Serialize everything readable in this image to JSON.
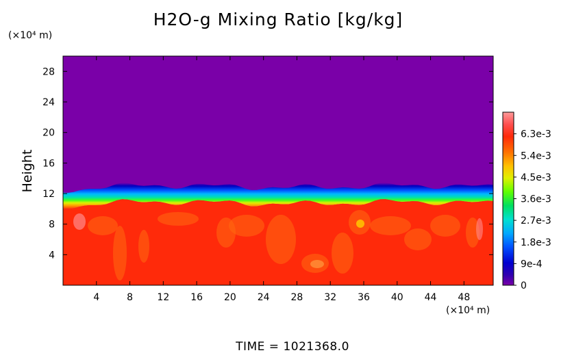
{
  "chart_data": {
    "type": "heatmap",
    "title": "H2O-g Mixing Ratio [kg/kg]",
    "ylabel": "Height",
    "x_unit": "(×10⁴ m)",
    "y_unit": "(×10⁴ m)",
    "xlim": [
      0,
      51.5
    ],
    "ylim": [
      0,
      30
    ],
    "x_ticks": [
      "4",
      "8",
      "12",
      "16",
      "20",
      "24",
      "28",
      "32",
      "36",
      "40",
      "44",
      "48"
    ],
    "y_ticks": [
      "4",
      "8",
      "12",
      "16",
      "20",
      "24",
      "28"
    ],
    "colorbar": {
      "min": 0,
      "max": 0.0072,
      "labels": [
        "0",
        "9e-4",
        "1.8e-3",
        "2.7e-3",
        "3.6e-3",
        "4.5e-3",
        "5.4e-3",
        "6.3e-3"
      ],
      "label_values": [
        0,
        0.0009,
        0.0018,
        0.0027,
        0.0036,
        0.0045,
        0.0054,
        0.0063
      ]
    },
    "field_description": {
      "upper_value": 0,
      "lower_value": 0.0059,
      "interface_height_mean": 11.5
    },
    "colors": {
      "dry": "#7a00a8",
      "moist": "#ff2a0a",
      "bands": [
        "#000080",
        "#0000d0",
        "#0040ff",
        "#00a0ff",
        "#00e0d0",
        "#00e060",
        "#40ff00",
        "#c0ff00",
        "#ffe000",
        "#ffa000",
        "#ff6000",
        "#ff2a0a",
        "#ff5050",
        "#ff9090"
      ]
    }
  },
  "footer": {
    "time_label": "TIME  =  1021368.0"
  }
}
